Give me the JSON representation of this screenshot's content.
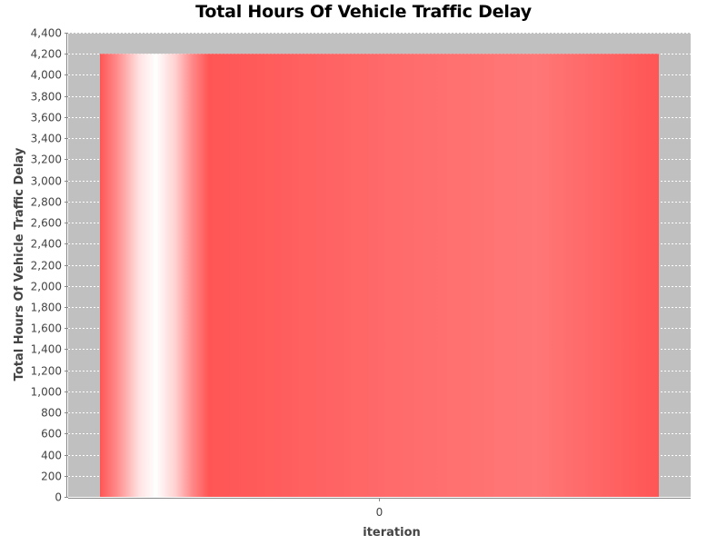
{
  "chart_data": {
    "type": "bar",
    "title": "Total Hours Of Vehicle Traffic Delay",
    "xlabel": "iteration",
    "ylabel": "Total Hours Of Vehicle Traffic Delay",
    "categories": [
      "0"
    ],
    "values": [
      4200
    ],
    "ylim": [
      0,
      4400
    ],
    "yticks": [
      0,
      200,
      400,
      600,
      800,
      1000,
      1200,
      1400,
      1600,
      1800,
      2000,
      2200,
      2400,
      2600,
      2800,
      3000,
      3200,
      3400,
      3600,
      3800,
      4000,
      4200,
      4400
    ],
    "ytick_labels": [
      "0",
      "200",
      "400",
      "600",
      "800",
      "1,000",
      "1,200",
      "1,400",
      "1,600",
      "1,800",
      "2,000",
      "2,200",
      "2,400",
      "2,600",
      "2,800",
      "3,000",
      "3,200",
      "3,400",
      "3,600",
      "3,800",
      "4,000",
      "4,200",
      "4,400"
    ],
    "grid": true,
    "bar_color": "#ff5555",
    "plot_background": "#c0c0c0"
  }
}
